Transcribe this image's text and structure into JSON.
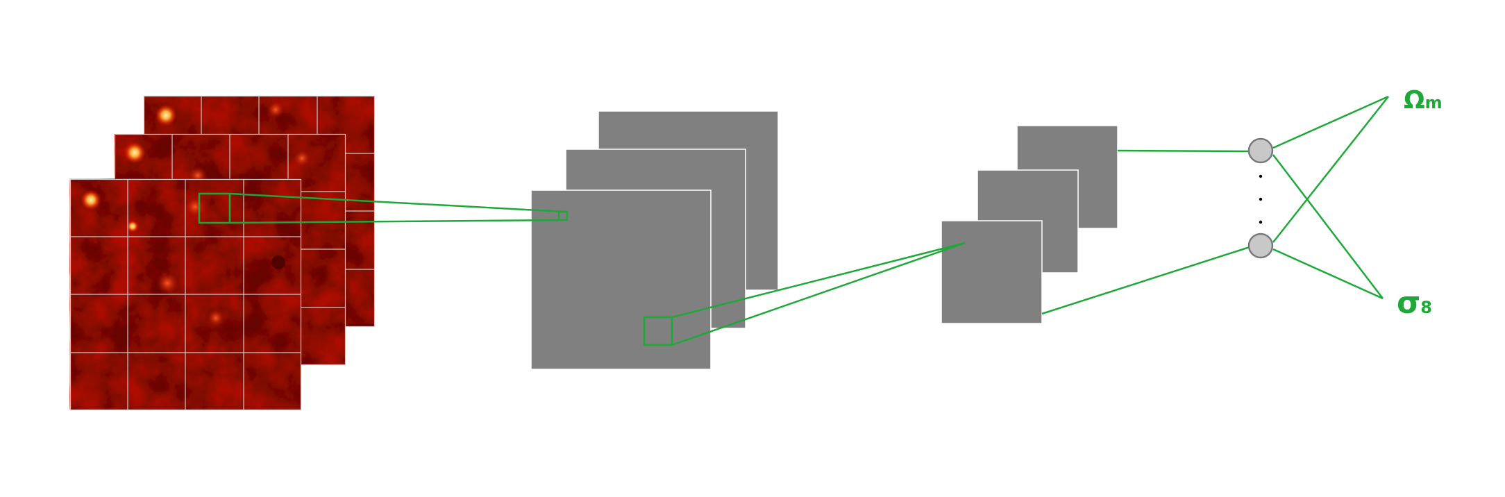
{
  "outputs": {
    "omega_symbol": "Ω",
    "omega_subscript": "m",
    "sigma_symbol": "σ",
    "sigma_subscript": "8"
  },
  "colors": {
    "connection": "#1fa83a",
    "feature_map": "#808080",
    "feature_map_edge": "#ffffff",
    "node_fill": "#c8c8c8",
    "node_stroke": "#7a7a7a",
    "heatmap_dark": "#3a0000",
    "heatmap_mid": "#b01000",
    "heatmap_bright": "#ffd070",
    "grid_line": "#c8c8c8"
  },
  "input_maps": {
    "count": 3,
    "grid_divisions": 4
  },
  "conv_layer_1": {
    "count": 3
  },
  "conv_layer_2": {
    "count": 3
  },
  "dense_layer": {
    "visible_nodes": 2,
    "ellipsis_dots": 3
  }
}
